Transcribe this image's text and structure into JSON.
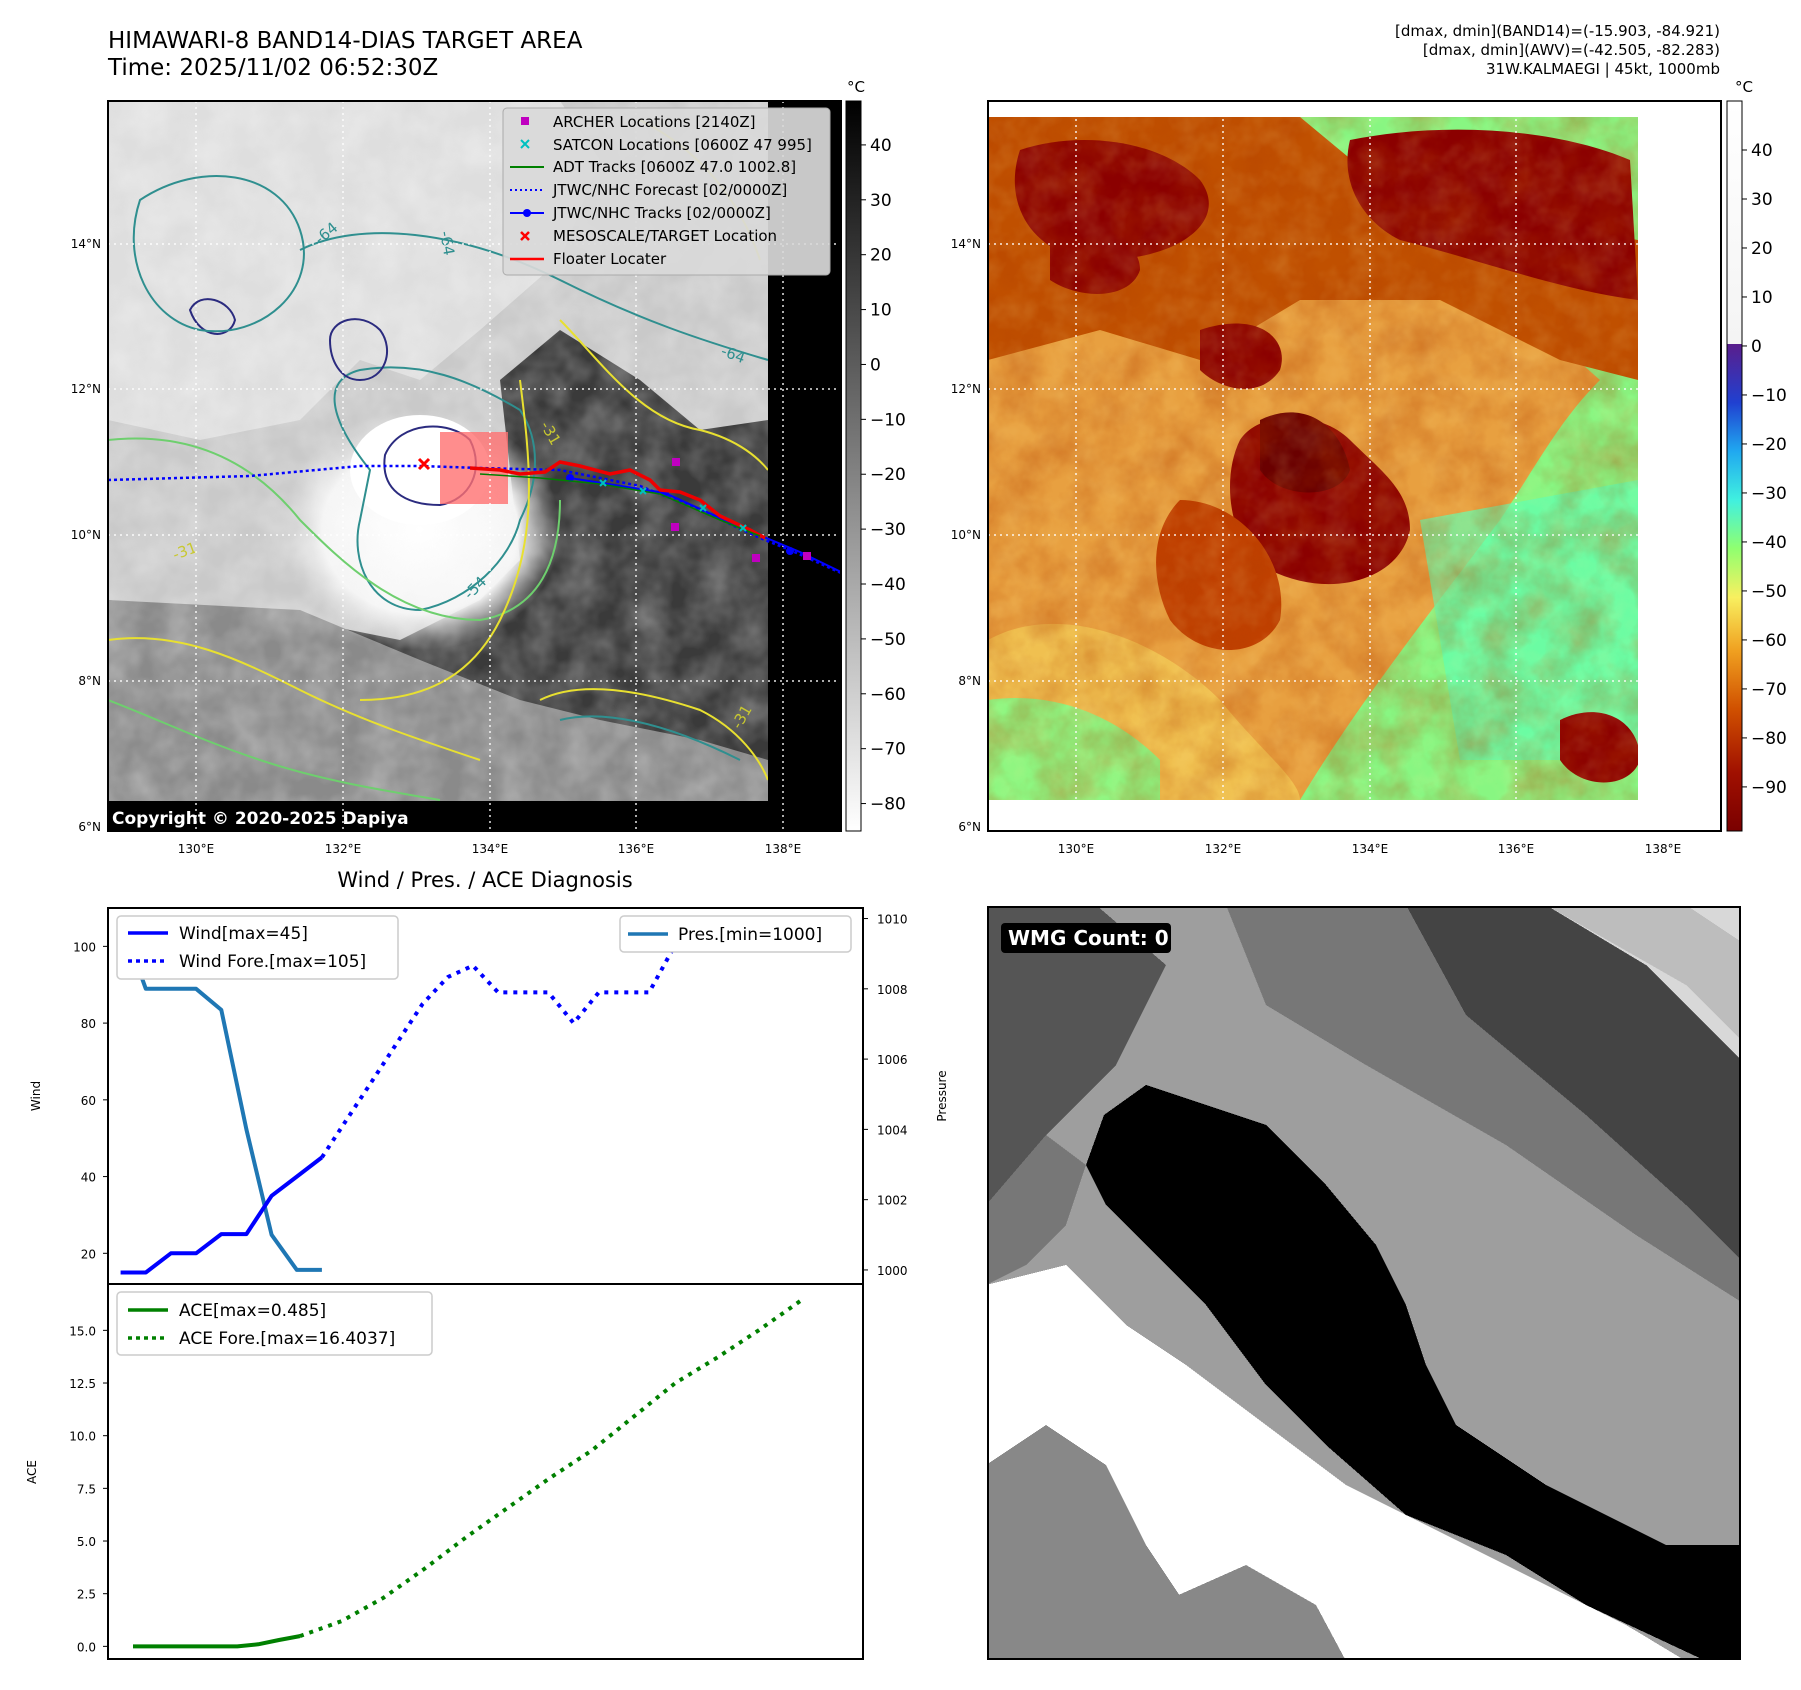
{
  "header": {
    "title_line1": "HIMAWARI-8 BAND14-DIAS TARGET AREA",
    "title_line2": "Time: 2025/11/02 06:52:30Z",
    "info_line1": "[dmax, dmin](BAND14)=(-15.903, -84.921)",
    "info_line2": "[dmax, dmin](AWV)=(-42.505, -82.283)",
    "info_line3": "31W.KALMAEGI | 45kt, 1000mb"
  },
  "map": {
    "lat_labels": [
      "14°N",
      "12°N",
      "10°N",
      "8°N",
      "6°N"
    ],
    "lon_labels": [
      "130°E",
      "132°E",
      "134°E",
      "136°E",
      "138°E"
    ],
    "copyright": "Copyright © 2020-2025 Dapiya",
    "contour_labels": [
      "-64",
      "-64",
      "-64",
      "-54",
      "-31",
      "-31",
      "-31"
    ],
    "legend": [
      {
        "label": "ARCHER Locations [2140Z]",
        "color": "#c000c0",
        "marker": "square"
      },
      {
        "label": "SATCON Locations [0600Z 47 995]",
        "color": "#00c0c0",
        "marker": "x"
      },
      {
        "label": "ADT Tracks [0600Z 47.0 1002.8]",
        "color": "#008000",
        "marker": "line"
      },
      {
        "label": "JTWC/NHC Forecast [02/0000Z]",
        "color": "#0000ff",
        "marker": "dotted"
      },
      {
        "label": "JTWC/NHC Tracks [02/0000Z]",
        "color": "#0000ff",
        "marker": "line-dot"
      },
      {
        "label": "MESOSCALE/TARGET Location",
        "color": "#ff0000",
        "marker": "x"
      },
      {
        "label": "Floater Locater",
        "color": "#ff0000",
        "marker": "line"
      }
    ]
  },
  "colorbar_gray": {
    "unit": "°C",
    "ticks": [
      "40",
      "30",
      "20",
      "10",
      "0",
      "−10",
      "−20",
      "−30",
      "−40",
      "−50",
      "−60",
      "−70",
      "−80"
    ]
  },
  "colorbar_color": {
    "unit": "°C",
    "ticks": [
      "40",
      "30",
      "20",
      "10",
      "0",
      "−10",
      "−20",
      "−30",
      "−40",
      "−50",
      "−60",
      "−70",
      "−80",
      "−90"
    ]
  },
  "wmg": {
    "label": "WMG Count: 0"
  },
  "chart_data": [
    {
      "type": "line",
      "title": "Wind / Pres. / ACE Diagnosis",
      "ylabel": "Wind",
      "y2label": "Pressure",
      "ylim": [
        12,
        110
      ],
      "y2lim": [
        999.6,
        1010.3
      ],
      "yticks": [
        "20",
        "40",
        "60",
        "80",
        "100"
      ],
      "y2ticks": [
        "1000",
        "1002",
        "1004",
        "1006",
        "1008",
        "1010"
      ],
      "series": [
        {
          "name": "Wind[max=45]",
          "color": "#0000ff",
          "style": "solid",
          "x": [
            0,
            1,
            2,
            3,
            4,
            5,
            6,
            7,
            8
          ],
          "values": [
            15,
            15,
            20,
            20,
            25,
            25,
            35,
            40,
            45
          ]
        },
        {
          "name": "Wind Fore.[max=105]",
          "color": "#0000ff",
          "style": "dotted",
          "x": [
            8,
            9,
            10,
            11,
            12,
            13,
            14,
            15,
            16,
            17,
            18,
            19,
            20,
            21,
            22,
            23,
            24
          ],
          "values": [
            45,
            55,
            65,
            75,
            85,
            92,
            95,
            88,
            88,
            88,
            80,
            88,
            88,
            88,
            100,
            100,
            105
          ]
        },
        {
          "name": "Pres.[min=1000]",
          "color": "#1f77b4",
          "style": "solid",
          "axis": "right",
          "x": [
            0,
            1,
            2,
            3,
            4,
            5,
            6,
            7,
            8
          ],
          "values": [
            1010,
            1008,
            1008,
            1008,
            1007.4,
            1004,
            1001,
            1000,
            1000
          ]
        }
      ],
      "legend_left": [
        "Wind[max=45]",
        "Wind Fore.[max=105]"
      ],
      "legend_right": [
        "Pres.[min=1000]"
      ]
    },
    {
      "type": "line",
      "ylabel": "ACE",
      "ylim": [
        -0.6,
        17.2
      ],
      "yticks": [
        "0.0",
        "2.5",
        "5.0",
        "7.5",
        "10.0",
        "12.5",
        "15.0"
      ],
      "series": [
        {
          "name": "ACE[max=0.485]",
          "color": "#008000",
          "style": "solid",
          "x": [
            0,
            1,
            2,
            3,
            4,
            5,
            6,
            7,
            8
          ],
          "values": [
            0,
            0,
            0,
            0,
            0,
            0,
            0.1,
            0.3,
            0.485
          ]
        },
        {
          "name": "ACE Fore.[max=16.4037]",
          "color": "#008000",
          "style": "dotted",
          "x": [
            8,
            10,
            12,
            14,
            16,
            18,
            20,
            22,
            24,
            26,
            28,
            30,
            32
          ],
          "values": [
            0.485,
            1.2,
            2.3,
            3.7,
            5.2,
            6.6,
            8.0,
            9.3,
            10.9,
            12.5,
            13.7,
            15.0,
            16.4
          ]
        }
      ],
      "legend": [
        "ACE[max=0.485]",
        "ACE Fore.[max=16.4037]"
      ]
    }
  ]
}
